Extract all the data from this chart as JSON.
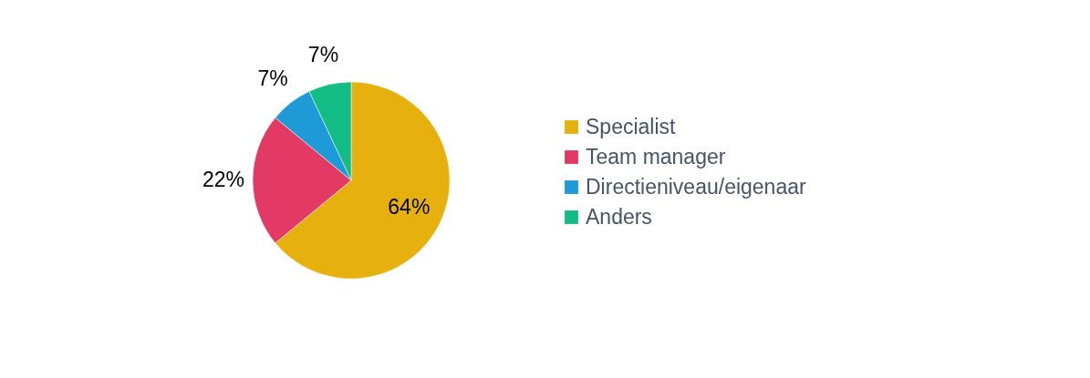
{
  "chart_data": {
    "type": "pie",
    "categories": [
      "Specialist",
      "Team manager",
      "Directieniveau/eigenaar",
      "Anders"
    ],
    "values": [
      64,
      22,
      7,
      7
    ],
    "colors": [
      "#e6b00e",
      "#e23a64",
      "#1e9bd7",
      "#12bc84"
    ],
    "value_labels": [
      "64%",
      "22%",
      "7%",
      "7%"
    ],
    "legend": "right"
  }
}
